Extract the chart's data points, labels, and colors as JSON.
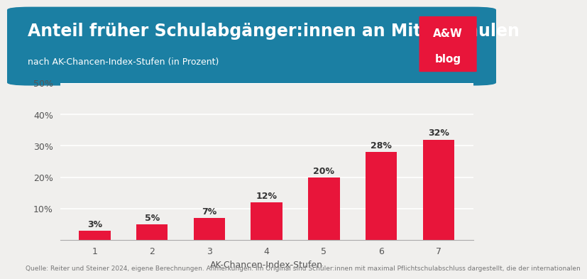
{
  "title": "Anteil früher Schulabgänger:innen an Mittelschulen",
  "subtitle": "nach AK-Chancen-Index-Stufen (in Prozent)",
  "xlabel": "AK-Chancen-Index-Stufen",
  "categories": [
    1,
    2,
    3,
    4,
    5,
    6,
    7
  ],
  "values": [
    3,
    5,
    7,
    12,
    20,
    28,
    32
  ],
  "bar_color": "#e8153a",
  "header_bg_color": "#1b7fa3",
  "header_text_color": "#ffffff",
  "subtitle_text_color": "#ffffff",
  "logo_bg_color": "#e8153a",
  "logo_text_color": "#ffffff",
  "chart_bg_color": "#f0efed",
  "grid_color": "#ffffff",
  "axis_label_color": "#555555",
  "tick_label_color": "#555555",
  "bar_label_color": "#333333",
  "ylim": [
    0,
    50
  ],
  "yticks": [
    0,
    10,
    20,
    30,
    40,
    50
  ],
  "footer_text": "Quelle: Reiter und Steiner 2024, eigene Berechnungen. Anmerkungen: Im Original sind Schüler:innen mit maximal Pflichtschulabschluss dargestellt, die der internationalen",
  "title_fontsize": 17,
  "subtitle_fontsize": 9,
  "bar_label_fontsize": 9,
  "axis_fontsize": 9,
  "xlabel_fontsize": 9,
  "footer_fontsize": 6.5
}
